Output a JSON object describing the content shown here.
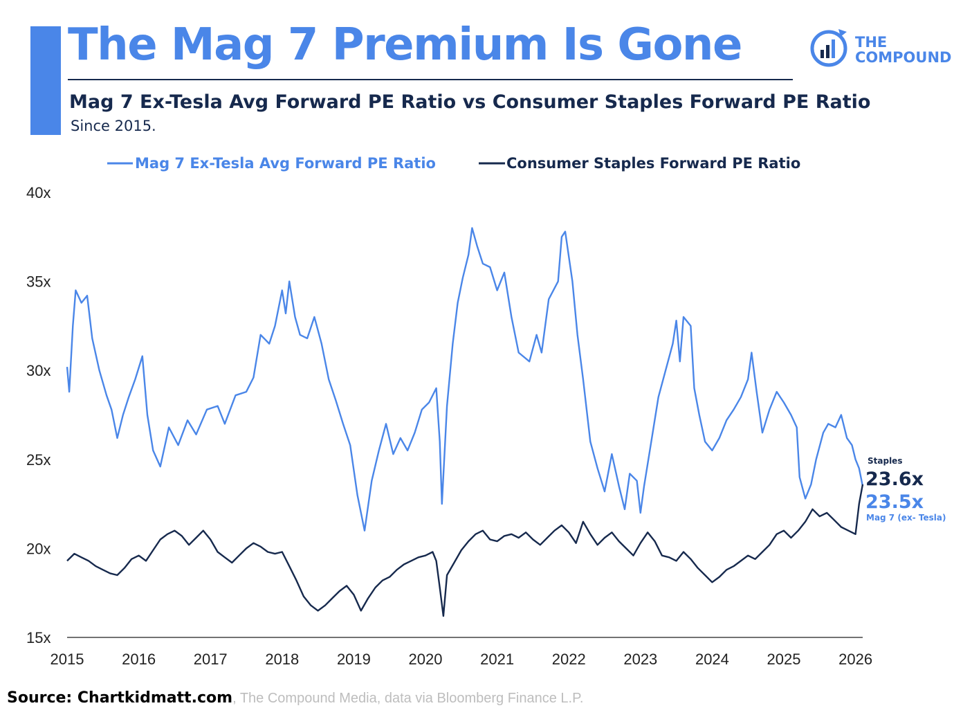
{
  "header": {
    "title": "The Mag 7 Premium Is Gone",
    "subtitle": "Mag 7 Ex-Tesla Avg Forward PE Ratio vs Consumer Staples Forward PE Ratio",
    "since": "Since 2015."
  },
  "logo": {
    "line1": "THE",
    "line2": "COMPOUND",
    "icon": "bar-chart-circle-icon"
  },
  "source": {
    "lead": "Source: Chartkidmatt.com",
    "rest": ", The Compound Media, data via Bloomberg Finance L.P."
  },
  "colors": {
    "mag7": "#4a86e8",
    "staples": "#16294d",
    "accent": "#4a86e8"
  },
  "chart_data": {
    "type": "line",
    "x_range": [
      2015,
      2026.1
    ],
    "ylim": [
      15,
      40
    ],
    "x_ticks": [
      "2015",
      "2016",
      "2017",
      "2018",
      "2019",
      "2020",
      "2021",
      "2022",
      "2023",
      "2024",
      "2025",
      "2026"
    ],
    "y_ticks": [
      "15x",
      "20x",
      "25x",
      "30x",
      "35x",
      "40x"
    ],
    "legend": {
      "position": "top"
    },
    "grid": false,
    "series": [
      {
        "name": "Mag 7 Ex-Tesla Avg Forward PE Ratio",
        "color": "#4a86e8",
        "x": [
          2015.0,
          2015.03,
          2015.08,
          2015.12,
          2015.2,
          2015.28,
          2015.35,
          2015.45,
          2015.55,
          2015.62,
          2015.7,
          2015.78,
          2015.86,
          2015.95,
          2016.05,
          2016.12,
          2016.2,
          2016.3,
          2016.42,
          2016.55,
          2016.68,
          2016.8,
          2016.95,
          2017.1,
          2017.2,
          2017.35,
          2017.5,
          2017.6,
          2017.7,
          2017.82,
          2017.9,
          2018.0,
          2018.05,
          2018.1,
          2018.18,
          2018.25,
          2018.35,
          2018.45,
          2018.55,
          2018.65,
          2018.75,
          2018.85,
          2018.95,
          2019.05,
          2019.15,
          2019.25,
          2019.35,
          2019.45,
          2019.55,
          2019.65,
          2019.75,
          2019.85,
          2019.95,
          2020.05,
          2020.15,
          2020.2,
          2020.23,
          2020.3,
          2020.38,
          2020.45,
          2020.52,
          2020.6,
          2020.65,
          2020.72,
          2020.8,
          2020.9,
          2021.0,
          2021.1,
          2021.2,
          2021.3,
          2021.45,
          2021.55,
          2021.62,
          2021.72,
          2021.85,
          2021.9,
          2021.95,
          2022.05,
          2022.12,
          2022.2,
          2022.3,
          2022.4,
          2022.5,
          2022.6,
          2022.7,
          2022.78,
          2022.85,
          2022.95,
          2023.0,
          2023.05,
          2023.15,
          2023.25,
          2023.35,
          2023.45,
          2023.5,
          2023.55,
          2023.6,
          2023.7,
          2023.75,
          2023.82,
          2023.9,
          2024.0,
          2024.1,
          2024.2,
          2024.3,
          2024.4,
          2024.5,
          2024.55,
          2024.62,
          2024.7,
          2024.8,
          2024.9,
          2025.0,
          2025.1,
          2025.18,
          2025.22,
          2025.3,
          2025.38,
          2025.45,
          2025.55,
          2025.62,
          2025.72,
          2025.8,
          2025.88,
          2025.95,
          2026.0,
          2026.05,
          2026.1
        ],
        "y": [
          30.2,
          28.8,
          32.5,
          34.5,
          33.8,
          34.2,
          31.8,
          30.0,
          28.6,
          27.8,
          26.2,
          27.5,
          28.5,
          29.5,
          30.8,
          27.5,
          25.5,
          24.6,
          26.8,
          25.8,
          27.2,
          26.4,
          27.8,
          28.0,
          27.0,
          28.6,
          28.8,
          29.6,
          32.0,
          31.5,
          32.5,
          34.5,
          33.2,
          35.0,
          33.0,
          32.0,
          31.8,
          33.0,
          31.5,
          29.5,
          28.3,
          27.0,
          25.8,
          23.0,
          21.0,
          23.8,
          25.5,
          27.0,
          25.3,
          26.2,
          25.5,
          26.5,
          27.8,
          28.2,
          29.0,
          26.0,
          22.5,
          28.0,
          31.5,
          33.8,
          35.2,
          36.5,
          38.0,
          37.0,
          36.0,
          35.8,
          34.5,
          35.5,
          33.0,
          31.0,
          30.5,
          32.0,
          31.0,
          34.0,
          35.0,
          37.5,
          37.8,
          35.0,
          32.0,
          29.5,
          26.0,
          24.5,
          23.2,
          25.3,
          23.5,
          22.2,
          24.2,
          23.8,
          22.0,
          23.5,
          26.0,
          28.5,
          30.0,
          31.5,
          32.8,
          30.5,
          33.0,
          32.5,
          29.0,
          27.5,
          26.0,
          25.5,
          26.2,
          27.2,
          27.8,
          28.5,
          29.5,
          31.0,
          28.8,
          26.5,
          27.8,
          28.8,
          28.2,
          27.5,
          26.8,
          24.0,
          22.8,
          23.6,
          25.0,
          26.5,
          27.0,
          26.8,
          27.5,
          26.2,
          25.8,
          25.0,
          24.5,
          23.5
        ]
      },
      {
        "name": "Consumer Staples Forward PE Ratio",
        "color": "#16294d",
        "x": [
          2015.0,
          2015.1,
          2015.2,
          2015.3,
          2015.4,
          2015.5,
          2015.6,
          2015.7,
          2015.8,
          2015.9,
          2016.0,
          2016.1,
          2016.2,
          2016.3,
          2016.4,
          2016.5,
          2016.6,
          2016.7,
          2016.8,
          2016.9,
          2017.0,
          2017.1,
          2017.2,
          2017.3,
          2017.4,
          2017.5,
          2017.6,
          2017.7,
          2017.8,
          2017.9,
          2018.0,
          2018.1,
          2018.2,
          2018.3,
          2018.4,
          2018.5,
          2018.6,
          2018.7,
          2018.8,
          2018.9,
          2019.0,
          2019.1,
          2019.2,
          2019.3,
          2019.4,
          2019.5,
          2019.6,
          2019.7,
          2019.8,
          2019.9,
          2020.0,
          2020.1,
          2020.15,
          2020.2,
          2020.25,
          2020.3,
          2020.4,
          2020.5,
          2020.6,
          2020.7,
          2020.8,
          2020.9,
          2021.0,
          2021.1,
          2021.2,
          2021.3,
          2021.4,
          2021.5,
          2021.6,
          2021.7,
          2021.8,
          2021.9,
          2022.0,
          2022.1,
          2022.2,
          2022.3,
          2022.4,
          2022.5,
          2022.6,
          2022.7,
          2022.8,
          2022.9,
          2023.0,
          2023.1,
          2023.2,
          2023.3,
          2023.4,
          2023.5,
          2023.6,
          2023.7,
          2023.8,
          2023.9,
          2024.0,
          2024.1,
          2024.2,
          2024.3,
          2024.4,
          2024.5,
          2024.6,
          2024.7,
          2024.8,
          2024.9,
          2025.0,
          2025.1,
          2025.2,
          2025.3,
          2025.4,
          2025.5,
          2025.6,
          2025.7,
          2025.8,
          2025.9,
          2026.0,
          2026.05,
          2026.1
        ],
        "y": [
          19.3,
          19.7,
          19.5,
          19.3,
          19.0,
          18.8,
          18.6,
          18.5,
          18.9,
          19.4,
          19.6,
          19.3,
          19.9,
          20.5,
          20.8,
          21.0,
          20.7,
          20.2,
          20.6,
          21.0,
          20.5,
          19.8,
          19.5,
          19.2,
          19.6,
          20.0,
          20.3,
          20.1,
          19.8,
          19.7,
          19.8,
          19.0,
          18.2,
          17.3,
          16.8,
          16.5,
          16.8,
          17.2,
          17.6,
          17.9,
          17.4,
          16.5,
          17.2,
          17.8,
          18.2,
          18.4,
          18.8,
          19.1,
          19.3,
          19.5,
          19.6,
          19.8,
          19.3,
          17.8,
          16.2,
          18.5,
          19.2,
          19.9,
          20.4,
          20.8,
          21.0,
          20.5,
          20.4,
          20.7,
          20.8,
          20.6,
          20.9,
          20.5,
          20.2,
          20.6,
          21.0,
          21.3,
          20.9,
          20.3,
          21.5,
          20.8,
          20.2,
          20.6,
          20.9,
          20.4,
          20.0,
          19.6,
          20.3,
          20.9,
          20.4,
          19.6,
          19.5,
          19.3,
          19.8,
          19.4,
          18.9,
          18.5,
          18.1,
          18.4,
          18.8,
          19.0,
          19.3,
          19.6,
          19.4,
          19.8,
          20.2,
          20.8,
          21.0,
          20.6,
          21.0,
          21.5,
          22.2,
          21.8,
          22.0,
          21.6,
          21.2,
          21.0,
          20.8,
          22.5,
          23.6
        ]
      }
    ],
    "end_labels": {
      "staples_caption": "Staples",
      "staples_value": "23.6x",
      "mag7_value": "23.5x",
      "mag7_caption": "Mag 7 (ex- Tesla)"
    }
  }
}
